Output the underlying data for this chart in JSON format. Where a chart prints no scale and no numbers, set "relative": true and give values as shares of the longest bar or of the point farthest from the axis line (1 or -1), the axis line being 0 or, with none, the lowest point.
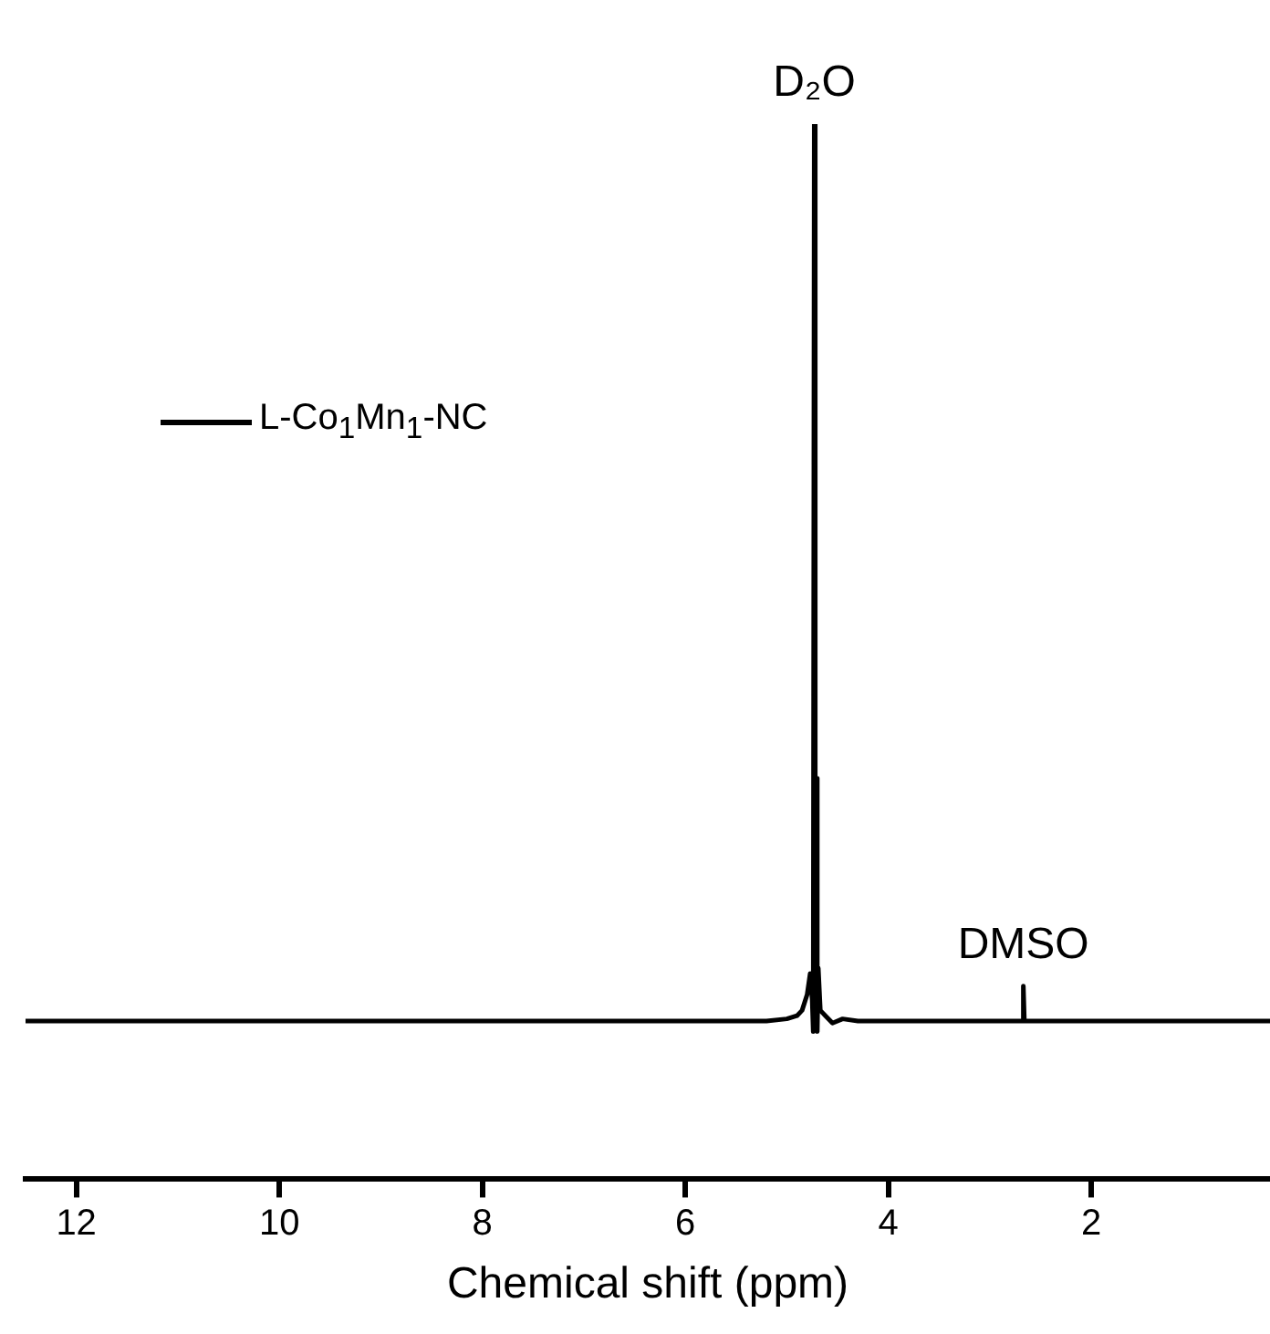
{
  "chart_data": {
    "type": "line",
    "xlabel": "Chemical shift (ppm)",
    "relative": true,
    "xlim": [
      12.5,
      0.24
    ],
    "xticks": [
      12,
      10,
      8,
      6,
      4,
      2
    ],
    "legend": "top left",
    "annotations": [
      {
        "text": "D₂O",
        "x": 4.73,
        "y": 1
      },
      {
        "text": "DMSO",
        "x": 2.67,
        "y": 0.183
      }
    ],
    "series": [
      {
        "name": "L-Co$_{1}$Mn$_{1}$-NC",
        "color": "#000000",
        "x": [
          12.5,
          10,
          8,
          6,
          5.2,
          5.0,
          4.9,
          4.85,
          4.8,
          4.77,
          4.75,
          4.74,
          4.73,
          4.72,
          4.71,
          4.7,
          4.69,
          4.67,
          4.62,
          4.55,
          4.45,
          4.3,
          2.68,
          2.67,
          2.67,
          2.66,
          0.24
        ],
        "values": [
          0.15,
          0.15,
          0.15,
          0.15,
          0.15,
          0.152,
          0.155,
          0.16,
          0.175,
          0.195,
          0.17,
          0.14,
          1,
          0.15,
          0.38,
          0.14,
          0.2,
          0.16,
          0.155,
          0.148,
          0.152,
          0.15,
          0.15,
          0.183,
          0.183,
          0.15,
          0.15
        ]
      }
    ]
  }
}
